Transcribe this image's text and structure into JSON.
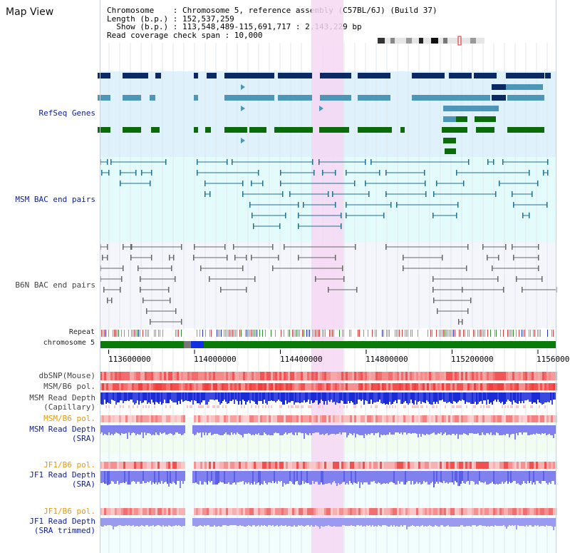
{
  "view": {
    "title": "Map View"
  },
  "header": {
    "line1": "Chromosome    : Chromosome 5, reference assembly (C57BL/6J) (Build 37)",
    "line2": "Length (b.p.) : 152,537,259",
    "line3": "  Show (b.p.) : 113,548,489-115,691,717 : 2,143,229 bp",
    "line4": "Read coverage check span : 10,000"
  },
  "tracks": {
    "refseq": "RefSeq Genes",
    "msm_bac": "MSM BAC end pairs",
    "b6n_bac": "B6N BAC end pairs",
    "repeat": "Repeat",
    "chromosome": "chromosome 5",
    "dbsnp": "dbSNP(Mouse)",
    "msm_b6_pol": "MSM/B6 pol.",
    "msm_read_depth_cap_1": "MSM Read Depth",
    "msm_read_depth_cap_2": "(Capillary)",
    "msm_b6_pol_sra": "MSM/B6 pol.",
    "msm_read_depth_sra_1": "MSM Read Depth",
    "msm_read_depth_sra_2": "(SRA)",
    "jf1_b6_pol": "JF1/B6 pol.",
    "jf1_read_depth_1": "JF1 Read Depth",
    "jf1_read_depth_2": "(SRA)",
    "jf1_b6_pol_trim": "JF1/B6 pol.",
    "jf1_read_depth_trim_1": "JF1 Read Depth",
    "jf1_read_depth_trim_2": "(SRA trimmed)"
  },
  "axis": {
    "ticks": [
      "113600000",
      "114000000",
      "114400000",
      "114800000",
      "115200000",
      "1156000"
    ]
  },
  "colors": {
    "highlight": "#f6d8f3",
    "refseq_bg": "#dff1fb",
    "msm_bg": "#e3fbfb",
    "b6n_bg": "#f4f6fb",
    "gene_dark": "#0a2a66",
    "gene_light": "#4c96b8",
    "gene_green": "#0b6b0b",
    "bac_line": "#1f6f90",
    "b6n_line": "#666666",
    "snp_red": "#f05a5a",
    "depth_blue": "#2233dd",
    "depth_lavender": "#8080ee"
  }
}
